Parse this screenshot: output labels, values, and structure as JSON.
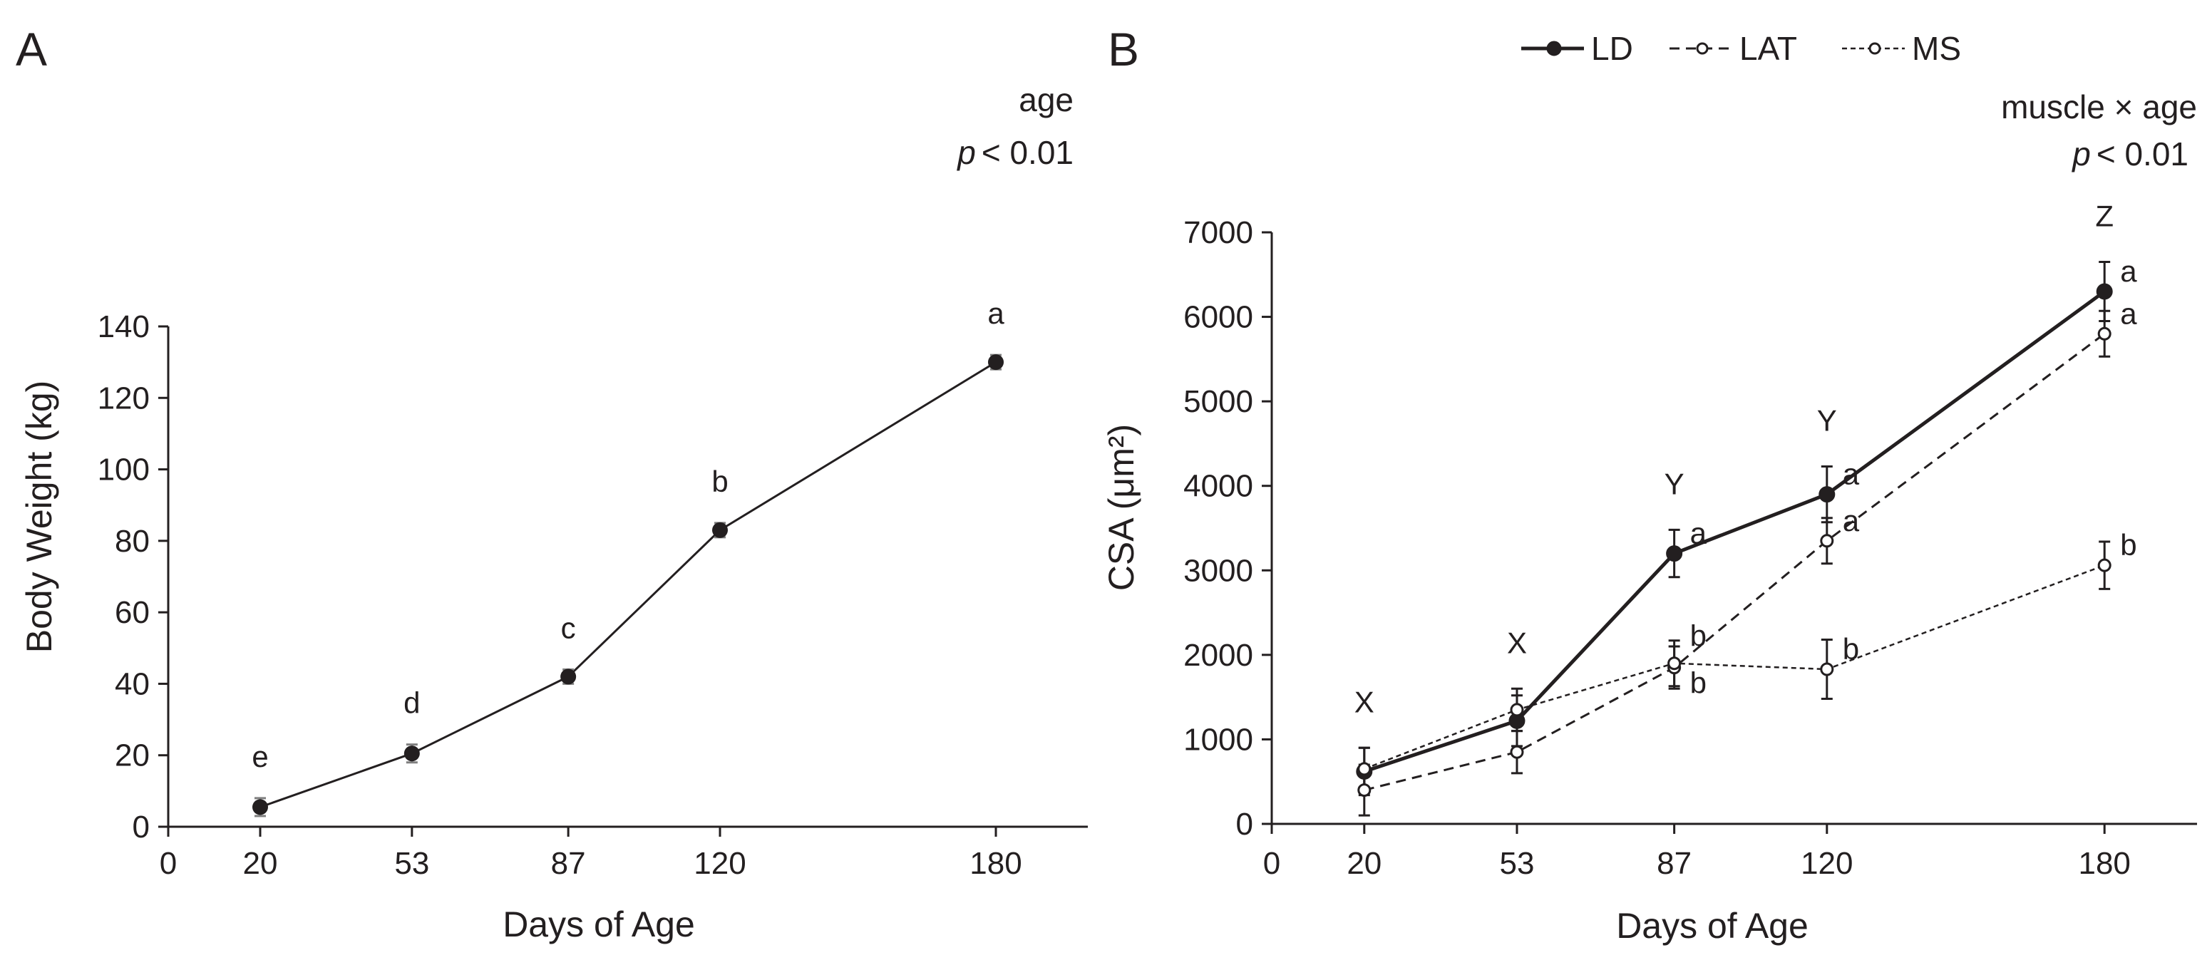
{
  "chart_data": [
    {
      "panel": "A",
      "type": "line",
      "xlabel": "Days of Age",
      "ylabel": "Body Weight (kg)",
      "xlim": [
        0,
        200
      ],
      "ylim": [
        0,
        140
      ],
      "x_ticks": [
        0,
        20,
        53,
        87,
        120,
        180
      ],
      "y_ticks": [
        0,
        20,
        40,
        60,
        80,
        100,
        120,
        140
      ],
      "stat_label": "age",
      "stat_p": "p",
      "stat_value": "< 0.01",
      "series": [
        {
          "name": "Body Weight",
          "x": [
            20,
            53,
            87,
            120,
            180
          ],
          "values": [
            5.5,
            20.5,
            42,
            83,
            130
          ],
          "errors": [
            2.5,
            2.5,
            2,
            2,
            2
          ],
          "labels": [
            "e",
            "d",
            "c",
            "b",
            "a"
          ]
        }
      ]
    },
    {
      "panel": "B",
      "type": "line",
      "xlabel": "Days of Age",
      "ylabel": "CSA (μm²)",
      "xlim": [
        0,
        200
      ],
      "ylim": [
        0,
        7000
      ],
      "x_ticks": [
        0,
        20,
        53,
        87,
        120,
        180
      ],
      "y_ticks": [
        0,
        1000,
        2000,
        3000,
        4000,
        5000,
        6000,
        7000
      ],
      "stat_label": "muscle × age",
      "stat_p": "p",
      "stat_value": "< 0.01",
      "age_groups": [
        {
          "x": 20,
          "label": "X"
        },
        {
          "x": 53,
          "label": "X"
        },
        {
          "x": 87,
          "label": "Y"
        },
        {
          "x": 120,
          "label": "Y"
        },
        {
          "x": 180,
          "label": "Z"
        }
      ],
      "series": [
        {
          "name": "LD",
          "x": [
            20,
            53,
            87,
            120,
            180
          ],
          "values": [
            620,
            1220,
            3200,
            3900,
            6300
          ],
          "errors": [
            280,
            300,
            280,
            330,
            350
          ],
          "labels": [
            "",
            "",
            "a",
            "a",
            "a"
          ]
        },
        {
          "name": "LAT",
          "x": [
            20,
            53,
            87,
            120,
            180
          ],
          "values": [
            400,
            850,
            1850,
            3350,
            5800
          ],
          "errors": [
            300,
            250,
            250,
            270,
            270
          ],
          "labels": [
            "",
            "",
            "b",
            "a",
            "a"
          ]
        },
        {
          "name": "MS",
          "x": [
            20,
            53,
            87,
            120,
            180
          ],
          "values": [
            650,
            1350,
            1900,
            1830,
            3060
          ],
          "errors": [
            250,
            250,
            270,
            350,
            280
          ],
          "labels": [
            "",
            "",
            "b",
            "b",
            "b"
          ]
        }
      ]
    }
  ]
}
